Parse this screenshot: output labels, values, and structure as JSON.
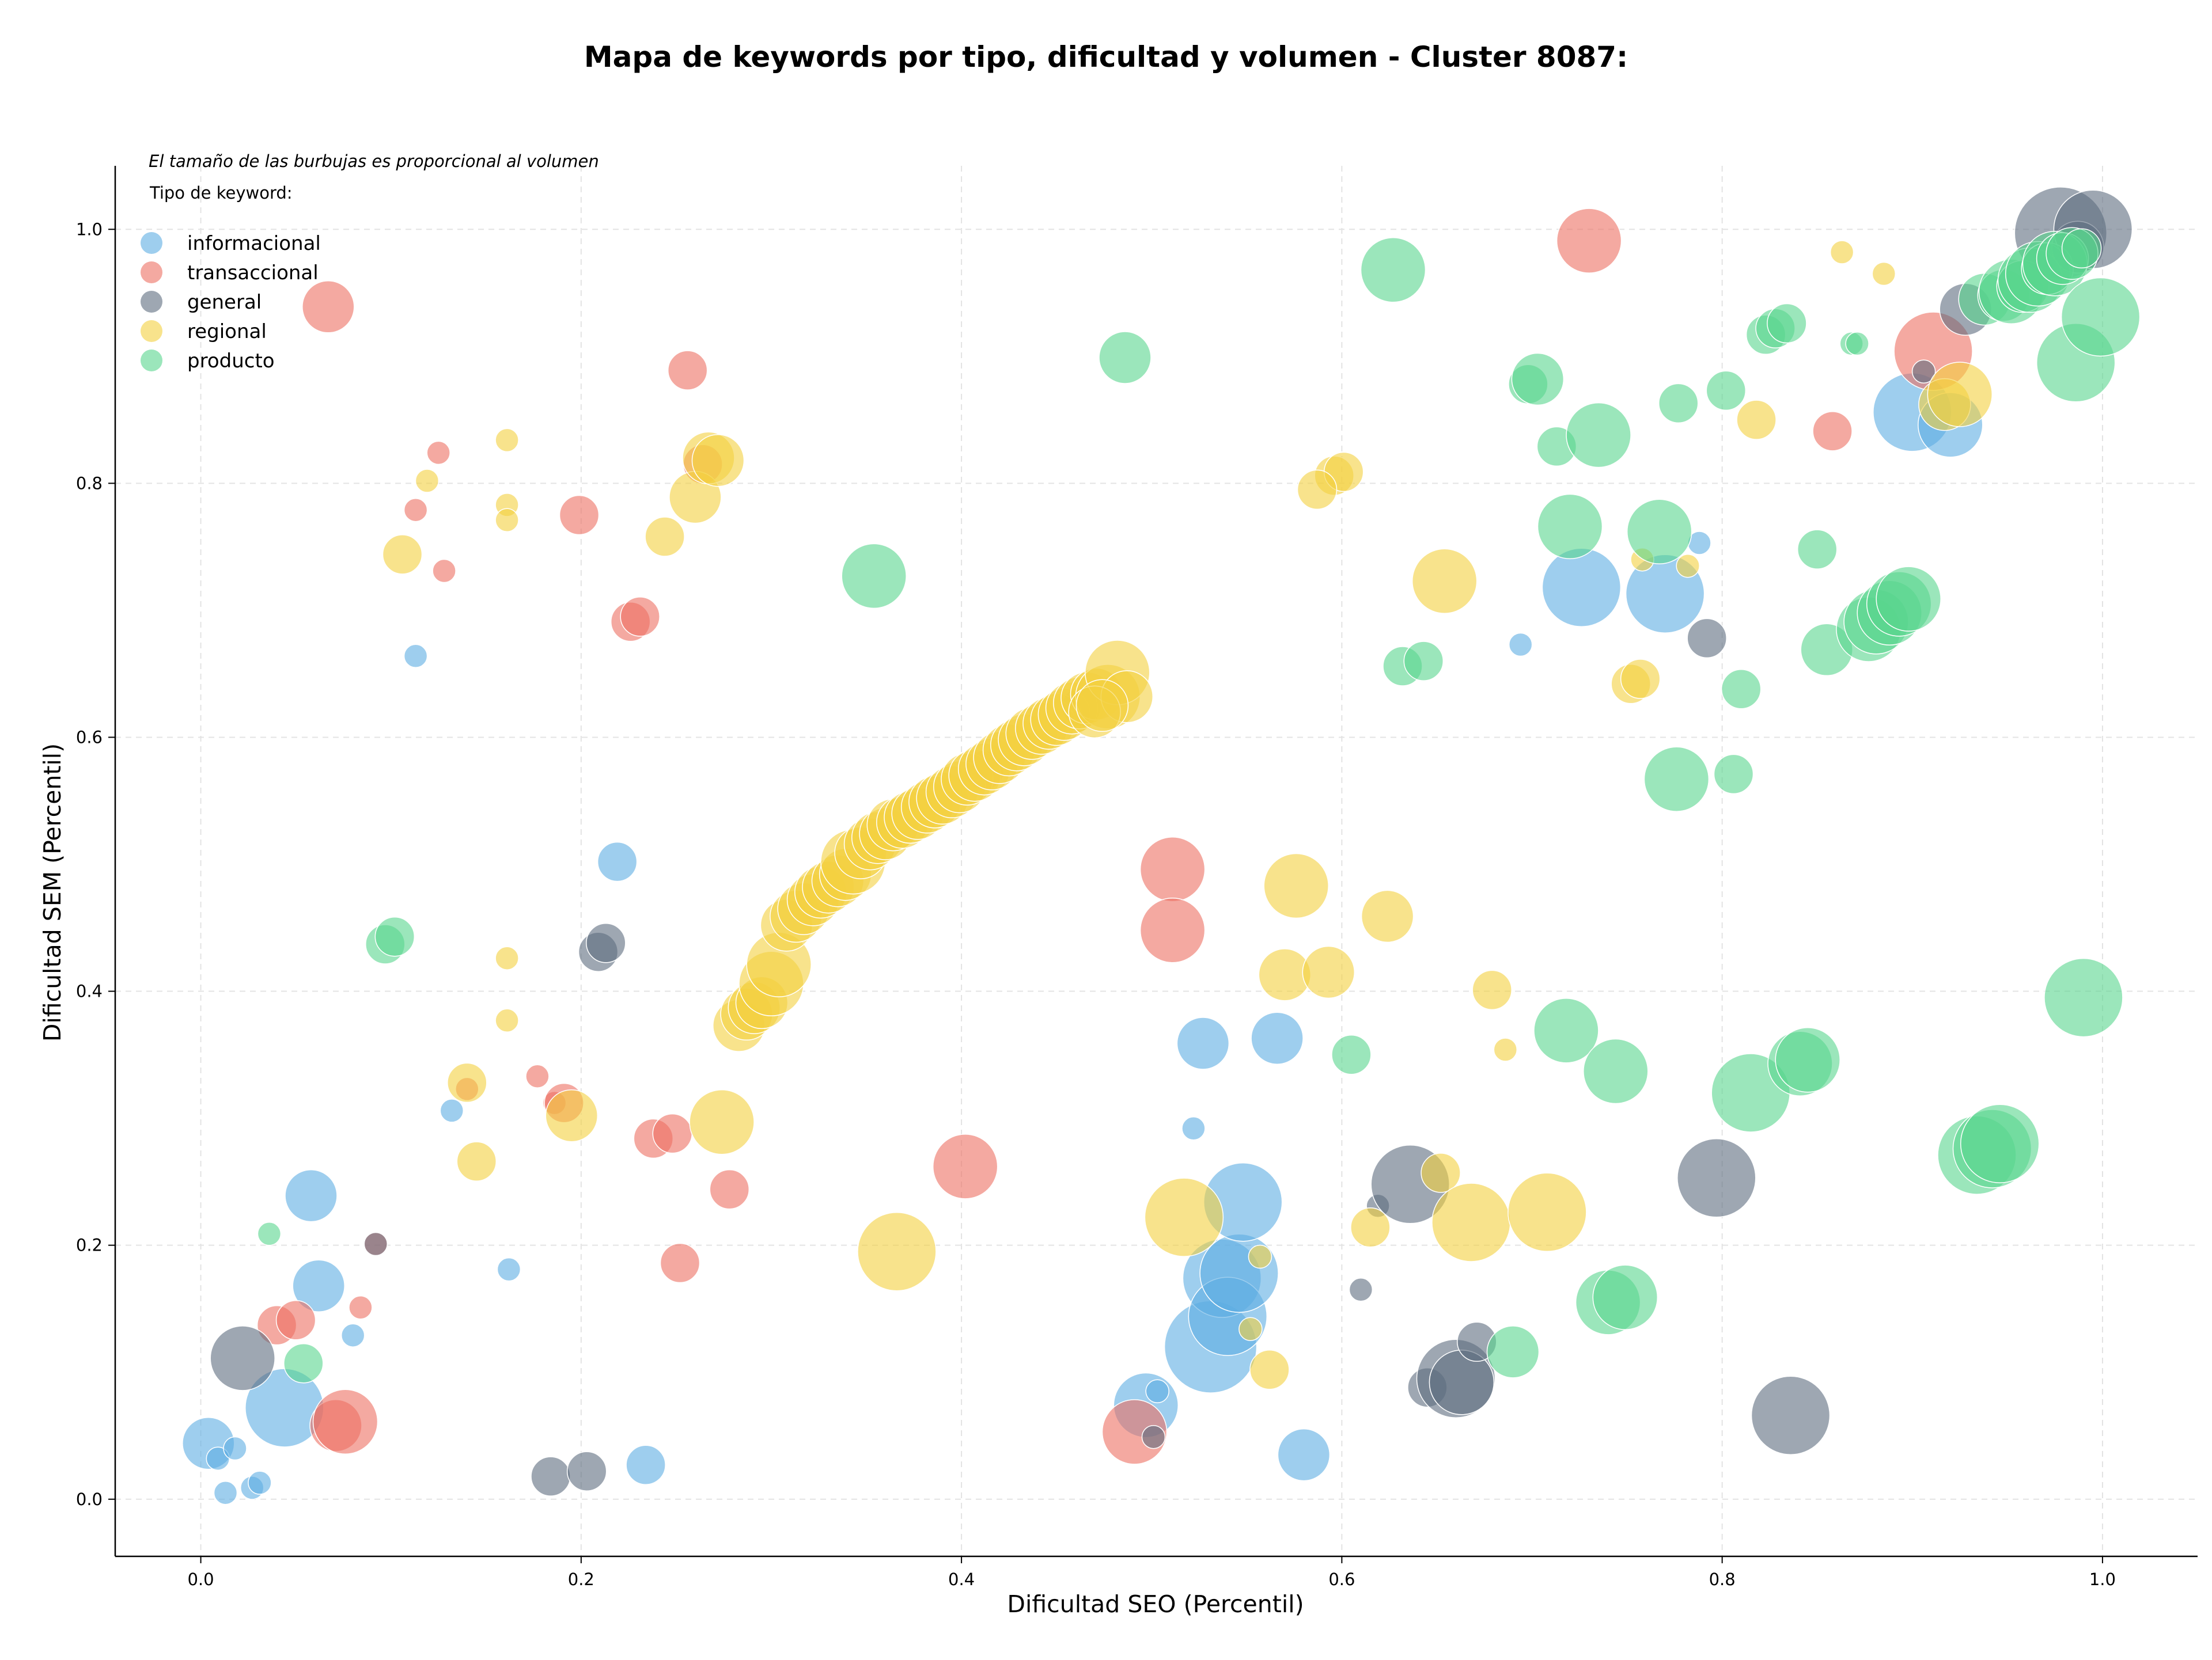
{
  "chart_data": {
    "type": "scatter",
    "title": "Mapa de keywords por tipo, dificultad y volumen - Cluster 8087:",
    "xlabel": "Dificultad SEO (Percentil)",
    "ylabel": "Dificultad SEM (Percentil)",
    "xlim": [
      -0.045,
      1.05
    ],
    "ylim": [
      -0.045,
      1.05
    ],
    "xticks": [
      0.0,
      0.2,
      0.4,
      0.6,
      0.8,
      1.0
    ],
    "yticks": [
      0.0,
      0.2,
      0.4,
      0.6,
      0.8,
      1.0
    ],
    "xtick_labels": [
      "0.0",
      "0.2",
      "0.4",
      "0.6",
      "0.8",
      "1.0"
    ],
    "ytick_labels": [
      "0.0",
      "0.2",
      "0.4",
      "0.6",
      "0.8",
      "1.0"
    ],
    "grid": true,
    "note": "El tamaño de las burbujas es proporcional al volumen",
    "legend_title": "Tipo de keyword:",
    "legend_position": "top-left",
    "series": [
      {
        "name": "informacional",
        "color": "#5DADE2",
        "points": [
          [
            0.004,
            0.044,
            3
          ],
          [
            0.009,
            0.032,
            1
          ],
          [
            0.018,
            0.04,
            1
          ],
          [
            0.013,
            0.005,
            1
          ],
          [
            0.027,
            0.009,
            1
          ],
          [
            0.031,
            0.013,
            1
          ],
          [
            0.044,
            0.072,
            5
          ],
          [
            0.058,
            0.239,
            3
          ],
          [
            0.062,
            0.168,
            3
          ],
          [
            0.08,
            0.129,
            1
          ],
          [
            0.113,
            0.664,
            1
          ],
          [
            0.132,
            0.306,
            1
          ],
          [
            0.162,
            0.181,
            1
          ],
          [
            0.219,
            0.502,
            2
          ],
          [
            0.234,
            0.027,
            2
          ],
          [
            0.497,
            0.074,
            4
          ],
          [
            0.503,
            0.085,
            1
          ],
          [
            0.522,
            0.292,
            1
          ],
          [
            0.527,
            0.359,
            3
          ],
          [
            0.531,
            0.12,
            6
          ],
          [
            0.537,
            0.174,
            5
          ],
          [
            0.54,
            0.144,
            5
          ],
          [
            0.546,
            0.178,
            5
          ],
          [
            0.548,
            0.234,
            5
          ],
          [
            0.566,
            0.363,
            3
          ],
          [
            0.58,
            0.035,
            3
          ],
          [
            0.694,
            0.673,
            1
          ],
          [
            0.726,
            0.718,
            5
          ],
          [
            0.77,
            0.713,
            5
          ],
          [
            0.788,
            0.753,
            1
          ],
          [
            0.9,
            0.856,
            5
          ],
          [
            0.92,
            0.846,
            4
          ]
        ]
      },
      {
        "name": "transaccional",
        "color": "#EC7063",
        "points": [
          [
            0.04,
            0.137,
            2
          ],
          [
            0.05,
            0.141,
            2
          ],
          [
            0.067,
            0.939,
            3
          ],
          [
            0.071,
            0.058,
            3
          ],
          [
            0.076,
            0.061,
            4
          ],
          [
            0.084,
            0.151,
            1
          ],
          [
            0.092,
            0.201,
            1
          ],
          [
            0.113,
            0.779,
            1
          ],
          [
            0.125,
            0.824,
            1
          ],
          [
            0.128,
            0.731,
            1
          ],
          [
            0.14,
            0.323,
            1
          ],
          [
            0.177,
            0.333,
            1
          ],
          [
            0.186,
            0.312,
            1
          ],
          [
            0.191,
            0.312,
            2
          ],
          [
            0.199,
            0.775,
            2
          ],
          [
            0.226,
            0.691,
            2
          ],
          [
            0.231,
            0.695,
            2
          ],
          [
            0.238,
            0.284,
            2
          ],
          [
            0.248,
            0.288,
            2
          ],
          [
            0.252,
            0.186,
            2
          ],
          [
            0.256,
            0.889,
            2
          ],
          [
            0.264,
            0.815,
            2
          ],
          [
            0.278,
            0.244,
            2
          ],
          [
            0.402,
            0.262,
            4
          ],
          [
            0.412,
            0.574,
            2
          ],
          [
            0.491,
            0.053,
            4
          ],
          [
            0.511,
            0.496,
            4
          ],
          [
            0.511,
            0.448,
            4
          ],
          [
            0.73,
            0.991,
            4
          ],
          [
            0.858,
            0.841,
            2
          ],
          [
            0.911,
            0.904,
            5
          ]
        ]
      },
      {
        "name": "general",
        "color": "#5D6D7E",
        "points": [
          [
            0.022,
            0.111,
            4
          ],
          [
            0.092,
            0.201,
            1
          ],
          [
            0.184,
            0.018,
            2
          ],
          [
            0.203,
            0.022,
            2
          ],
          [
            0.209,
            0.431,
            2
          ],
          [
            0.213,
            0.438,
            2
          ],
          [
            0.463,
            0.624,
            2
          ],
          [
            0.501,
            0.049,
            1
          ],
          [
            0.61,
            0.165,
            1
          ],
          [
            0.619,
            0.231,
            1
          ],
          [
            0.636,
            0.248,
            5
          ],
          [
            0.645,
            0.088,
            2
          ],
          [
            0.66,
            0.095,
            5
          ],
          [
            0.663,
            0.092,
            4
          ],
          [
            0.671,
            0.124,
            2
          ],
          [
            0.792,
            0.678,
            2
          ],
          [
            0.797,
            0.253,
            5
          ],
          [
            0.836,
            0.066,
            5
          ],
          [
            0.906,
            0.888,
            1
          ],
          [
            0.928,
            0.937,
            3
          ],
          [
            0.978,
            0.997,
            6
          ],
          [
            0.987,
            0.986,
            3
          ],
          [
            0.995,
            1.0,
            5
          ]
        ]
      },
      {
        "name": "regional",
        "color": "#F4D03F",
        "points": [
          [
            0.106,
            0.744,
            2
          ],
          [
            0.119,
            0.802,
            1
          ],
          [
            0.145,
            0.266,
            2
          ],
          [
            0.14,
            0.328,
            2
          ],
          [
            0.161,
            0.834,
            1
          ],
          [
            0.161,
            0.783,
            1
          ],
          [
            0.161,
            0.771,
            1
          ],
          [
            0.161,
            0.426,
            1
          ],
          [
            0.161,
            0.377,
            1
          ],
          [
            0.195,
            0.302,
            3
          ],
          [
            0.244,
            0.758,
            2
          ],
          [
            0.26,
            0.789,
            3
          ],
          [
            0.267,
            0.82,
            3
          ],
          [
            0.272,
            0.818,
            3
          ],
          [
            0.274,
            0.297,
            4
          ],
          [
            0.283,
            0.373,
            3
          ],
          [
            0.287,
            0.382,
            3
          ],
          [
            0.291,
            0.387,
            3
          ],
          [
            0.295,
            0.391,
            3
          ],
          [
            0.3,
            0.406,
            4
          ],
          [
            0.304,
            0.421,
            4
          ],
          [
            0.308,
            0.452,
            3
          ],
          [
            0.313,
            0.459,
            3
          ],
          [
            0.317,
            0.465,
            3
          ],
          [
            0.322,
            0.472,
            3
          ],
          [
            0.326,
            0.478,
            3
          ],
          [
            0.33,
            0.482,
            3
          ],
          [
            0.335,
            0.487,
            3
          ],
          [
            0.339,
            0.492,
            3
          ],
          [
            0.343,
            0.502,
            4
          ],
          [
            0.347,
            0.509,
            3
          ],
          [
            0.352,
            0.516,
            3
          ],
          [
            0.356,
            0.521,
            3
          ],
          [
            0.36,
            0.524,
            3
          ],
          [
            0.364,
            0.531,
            3
          ],
          [
            0.366,
            0.195,
            5
          ],
          [
            0.369,
            0.533,
            3
          ],
          [
            0.373,
            0.537,
            3
          ],
          [
            0.377,
            0.54,
            3
          ],
          [
            0.382,
            0.545,
            3
          ],
          [
            0.386,
            0.549,
            3
          ],
          [
            0.39,
            0.552,
            3
          ],
          [
            0.395,
            0.557,
            3
          ],
          [
            0.399,
            0.561,
            3
          ],
          [
            0.403,
            0.567,
            3
          ],
          [
            0.407,
            0.57,
            3
          ],
          [
            0.412,
            0.575,
            3
          ],
          [
            0.416,
            0.579,
            3
          ],
          [
            0.42,
            0.584,
            3
          ],
          [
            0.425,
            0.59,
            3
          ],
          [
            0.429,
            0.594,
            3
          ],
          [
            0.433,
            0.598,
            3
          ],
          [
            0.437,
            0.603,
            3
          ],
          [
            0.442,
            0.607,
            3
          ],
          [
            0.446,
            0.611,
            3
          ],
          [
            0.45,
            0.614,
            3
          ],
          [
            0.454,
            0.618,
            3
          ],
          [
            0.458,
            0.623,
            3
          ],
          [
            0.462,
            0.627,
            3
          ],
          [
            0.466,
            0.631,
            3
          ],
          [
            0.471,
            0.634,
            3
          ],
          [
            0.477,
            0.632,
            4
          ],
          [
            0.482,
            0.651,
            4
          ],
          [
            0.487,
            0.632,
            3
          ],
          [
            0.517,
            0.222,
            5
          ],
          [
            0.552,
            0.134,
            1
          ],
          [
            0.557,
            0.191,
            1
          ],
          [
            0.562,
            0.102,
            2
          ],
          [
            0.57,
            0.413,
            3
          ],
          [
            0.576,
            0.483,
            4
          ],
          [
            0.593,
            0.415,
            3
          ],
          [
            0.596,
            0.806,
            2
          ],
          [
            0.601,
            0.809,
            2
          ],
          [
            0.587,
            0.795,
            2
          ],
          [
            0.615,
            0.214,
            2
          ],
          [
            0.624,
            0.459,
            3
          ],
          [
            0.652,
            0.257,
            2
          ],
          [
            0.654,
            0.723,
            4
          ],
          [
            0.668,
            0.218,
            5
          ],
          [
            0.679,
            0.401,
            2
          ],
          [
            0.686,
            0.354,
            1
          ],
          [
            0.708,
            0.226,
            5
          ],
          [
            0.752,
            0.642,
            2
          ],
          [
            0.757,
            0.646,
            2
          ],
          [
            0.758,
            0.74,
            1
          ],
          [
            0.782,
            0.735,
            1
          ],
          [
            0.818,
            0.85,
            2
          ],
          [
            0.863,
            0.982,
            1
          ],
          [
            0.885,
            0.965,
            1
          ],
          [
            0.917,
            0.862,
            3
          ],
          [
            0.925,
            0.87,
            4
          ],
          [
            0.47,
            0.62,
            3
          ],
          [
            0.474,
            0.625,
            3
          ]
        ]
      },
      {
        "name": "producto",
        "color": "#58D68D",
        "points": [
          [
            0.036,
            0.209,
            1
          ],
          [
            0.054,
            0.107,
            2
          ],
          [
            0.097,
            0.437,
            2
          ],
          [
            0.102,
            0.443,
            2
          ],
          [
            0.354,
            0.727,
            4
          ],
          [
            0.486,
            0.899,
            3
          ],
          [
            0.605,
            0.35,
            2
          ],
          [
            0.627,
            0.968,
            4
          ],
          [
            0.632,
            0.656,
            2
          ],
          [
            0.643,
            0.66,
            2
          ],
          [
            0.69,
            0.116,
            3
          ],
          [
            0.698,
            0.878,
            2
          ],
          [
            0.703,
            0.882,
            3
          ],
          [
            0.713,
            0.829,
            2
          ],
          [
            0.718,
            0.369,
            4
          ],
          [
            0.72,
            0.766,
            4
          ],
          [
            0.735,
            0.838,
            4
          ],
          [
            0.74,
            0.155,
            4
          ],
          [
            0.744,
            0.337,
            4
          ],
          [
            0.749,
            0.159,
            4
          ],
          [
            0.767,
            0.762,
            4
          ],
          [
            0.776,
            0.567,
            4
          ],
          [
            0.777,
            0.863,
            2
          ],
          [
            0.802,
            0.873,
            2
          ],
          [
            0.806,
            0.571,
            2
          ],
          [
            0.81,
            0.638,
            2
          ],
          [
            0.815,
            0.32,
            5
          ],
          [
            0.823,
            0.917,
            2
          ],
          [
            0.828,
            0.922,
            2
          ],
          [
            0.834,
            0.926,
            2
          ],
          [
            0.841,
            0.343,
            4
          ],
          [
            0.845,
            0.346,
            4
          ],
          [
            0.85,
            0.748,
            2
          ],
          [
            0.855,
            0.669,
            3
          ],
          [
            0.868,
            0.91,
            1
          ],
          [
            0.871,
            0.91,
            1
          ],
          [
            0.877,
            0.685,
            4
          ],
          [
            0.881,
            0.691,
            4
          ],
          [
            0.888,
            0.698,
            4
          ],
          [
            0.893,
            0.705,
            4
          ],
          [
            0.898,
            0.709,
            4
          ],
          [
            0.934,
            0.271,
            5
          ],
          [
            0.938,
            0.945,
            3
          ],
          [
            0.942,
            0.276,
            5
          ],
          [
            0.946,
            0.28,
            5
          ],
          [
            0.948,
            0.948,
            3
          ],
          [
            0.952,
            0.951,
            4
          ],
          [
            0.958,
            0.955,
            3
          ],
          [
            0.962,
            0.96,
            4
          ],
          [
            0.966,
            0.965,
            4
          ],
          [
            0.971,
            0.969,
            3
          ],
          [
            0.975,
            0.973,
            4
          ],
          [
            0.979,
            0.977,
            3
          ],
          [
            0.984,
            0.981,
            3
          ],
          [
            0.986,
            0.895,
            5
          ],
          [
            0.989,
            0.985,
            2
          ],
          [
            0.99,
            0.395,
            5
          ],
          [
            0.999,
            0.931,
            5
          ]
        ]
      }
    ]
  }
}
